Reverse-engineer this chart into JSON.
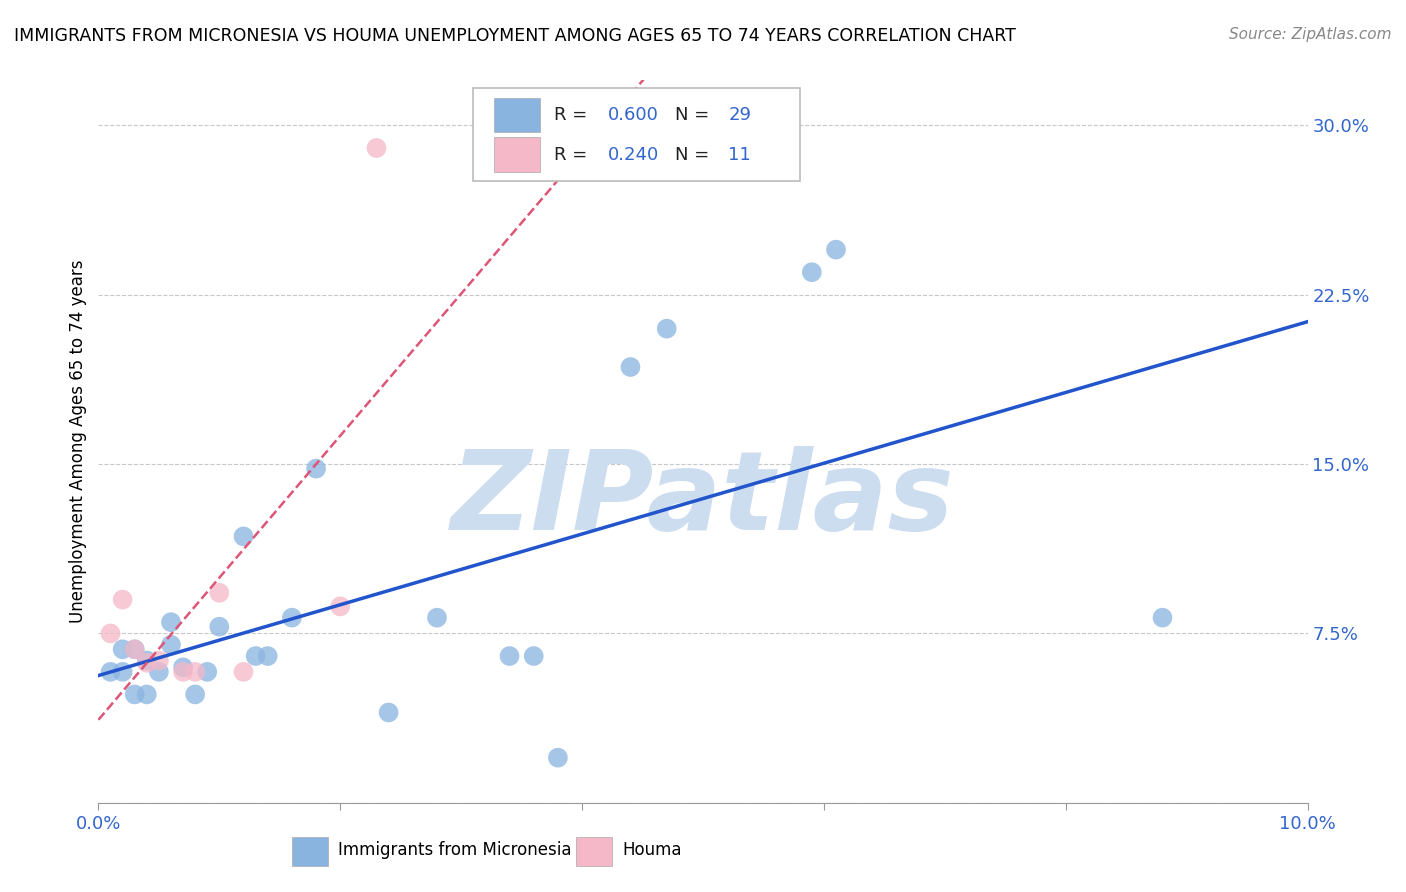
{
  "title": "IMMIGRANTS FROM MICRONESIA VS HOUMA UNEMPLOYMENT AMONG AGES 65 TO 74 YEARS CORRELATION CHART",
  "source_text": "Source: ZipAtlas.com",
  "ylabel": "Unemployment Among Ages 65 to 74 years",
  "xlim": [
    0.0,
    0.1
  ],
  "ylim": [
    0.0,
    0.32
  ],
  "grid_color": "#c8c8c8",
  "background_color": "#ffffff",
  "watermark_text": "ZIPatlas",
  "watermark_color": "#ccddf0",
  "blue_color": "#89b4e0",
  "pink_color": "#f4b8c8",
  "blue_line_color": "#2255cc",
  "pink_line_color": "#dd5577",
  "legend_R_blue": "0.600",
  "legend_N_blue": "29",
  "legend_R_pink": "0.240",
  "legend_N_pink": "11",
  "blue_scatter_x": [
    0.001,
    0.002,
    0.002,
    0.003,
    0.003,
    0.004,
    0.004,
    0.005,
    0.006,
    0.006,
    0.007,
    0.008,
    0.009,
    0.01,
    0.012,
    0.013,
    0.014,
    0.016,
    0.018,
    0.024,
    0.028,
    0.034,
    0.036,
    0.044,
    0.047,
    0.059,
    0.061,
    0.088,
    0.038
  ],
  "blue_scatter_y": [
    0.058,
    0.058,
    0.068,
    0.048,
    0.068,
    0.048,
    0.063,
    0.058,
    0.08,
    0.07,
    0.06,
    0.048,
    0.058,
    0.078,
    0.118,
    0.065,
    0.065,
    0.082,
    0.148,
    0.04,
    0.082,
    0.065,
    0.065,
    0.193,
    0.21,
    0.235,
    0.245,
    0.082,
    0.02
  ],
  "pink_scatter_x": [
    0.001,
    0.002,
    0.003,
    0.004,
    0.005,
    0.007,
    0.008,
    0.01,
    0.012,
    0.02,
    0.023
  ],
  "pink_scatter_y": [
    0.075,
    0.09,
    0.068,
    0.062,
    0.063,
    0.058,
    0.058,
    0.093,
    0.058,
    0.087,
    0.29
  ],
  "axis_tick_color": "#3366cc"
}
